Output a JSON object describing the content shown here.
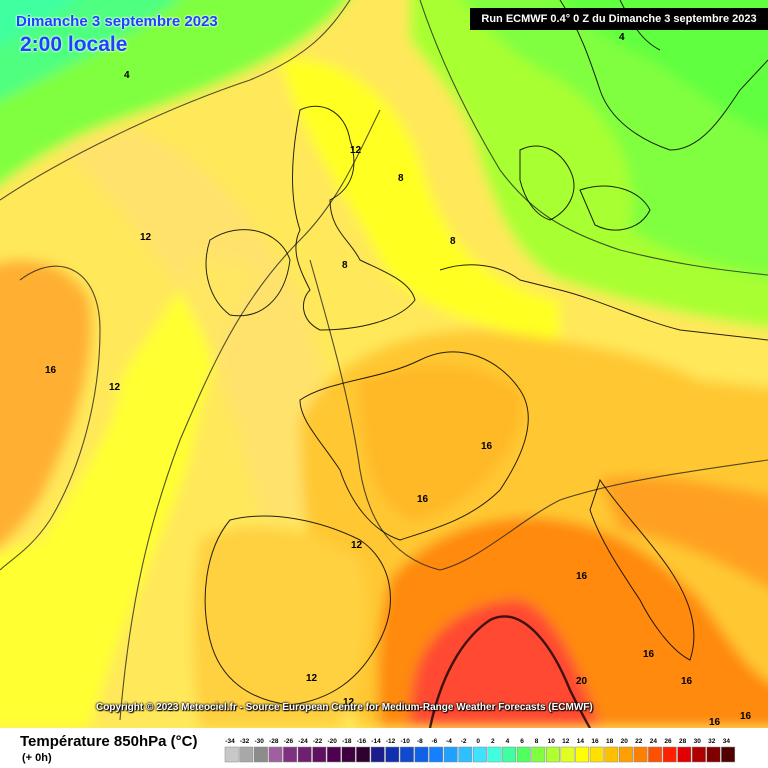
{
  "header": {
    "date_title": "Dimanche 3 septembre 2023",
    "local_time": "2:00 locale",
    "run_info": "Run ECMWF 0.4° 0 Z du Dimanche 3 septembre 2023"
  },
  "copyright": "Copyright © 2023 Meteociel.fr - Source European Centre for Medium-Range Weather Forecasts (ECMWF)",
  "legend": {
    "title": "Température 850hPa (°C)",
    "subtitle": "(+ 0h)",
    "scale_labels": [
      "-34",
      "-32",
      "-30",
      "-28",
      "-26",
      "-24",
      "-22",
      "-20",
      "-18",
      "-16",
      "-14",
      "-12",
      "-10",
      "-8",
      "-6",
      "-4",
      "-2",
      "0",
      "2",
      "4",
      "6",
      "8",
      "10",
      "12",
      "14",
      "16",
      "18",
      "20",
      "22",
      "24",
      "26",
      "28",
      "30",
      "32",
      "34"
    ],
    "scale_colors": [
      "#c8c8c8",
      "#a8a8a8",
      "#8c8c8c",
      "#a060a0",
      "#803080",
      "#702070",
      "#601060",
      "#500050",
      "#400040",
      "#300030",
      "#1c1c8c",
      "#1030b0",
      "#1048d0",
      "#1060e8",
      "#1480ff",
      "#20a0ff",
      "#30c0ff",
      "#40e0ff",
      "#40ffe0",
      "#40ffa0",
      "#50ff60",
      "#80ff40",
      "#b0ff30",
      "#e0ff20",
      "#ffff00",
      "#ffe000",
      "#ffc000",
      "#ffa000",
      "#ff8000",
      "#ff5000",
      "#ff2000",
      "#e00000",
      "#b00000",
      "#800000",
      "#500000"
    ]
  },
  "map": {
    "contour_labels": [
      {
        "text": "4"
      },
      {
        "text": "4"
      },
      {
        "text": "12"
      },
      {
        "text": "8"
      },
      {
        "text": "12"
      },
      {
        "text": "8"
      },
      {
        "text": "8"
      },
      {
        "text": "16"
      },
      {
        "text": "12"
      },
      {
        "text": "16"
      },
      {
        "text": "16"
      },
      {
        "text": "12"
      },
      {
        "text": "16"
      },
      {
        "text": "16"
      },
      {
        "text": "12"
      },
      {
        "text": "16"
      },
      {
        "text": "12"
      },
      {
        "text": "20"
      },
      {
        "text": "16"
      },
      {
        "text": "16"
      }
    ]
  }
}
